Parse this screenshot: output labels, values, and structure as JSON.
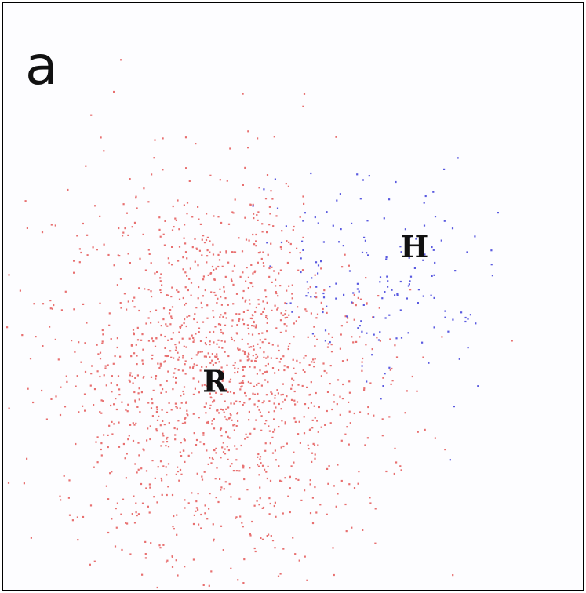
{
  "panel_label": "a",
  "chart_data": {
    "type": "scatter",
    "title": "",
    "xlabel": "",
    "ylabel": "",
    "grid": false,
    "legend": "none",
    "xlim": [
      0,
      100
    ],
    "ylim": [
      0,
      100
    ],
    "labels": [
      {
        "text": "R",
        "x": 36.5,
        "y": 35.0
      },
      {
        "text": "H",
        "x": 71.0,
        "y": 58.0
      }
    ],
    "series": [
      {
        "label_ref": "R",
        "color": "#e87070",
        "points": 1500,
        "center": [
          38,
          37
        ],
        "spread": [
          14,
          16
        ],
        "region": "lower-left"
      },
      {
        "label_ref": "H",
        "color": "#5a5ae0",
        "points": 170,
        "center": [
          65,
          53
        ],
        "spread": [
          11,
          10
        ],
        "region": "upper-right"
      }
    ],
    "outliers": [
      {
        "series": "R",
        "x": 19.0,
        "y": 85.0
      }
    ]
  }
}
